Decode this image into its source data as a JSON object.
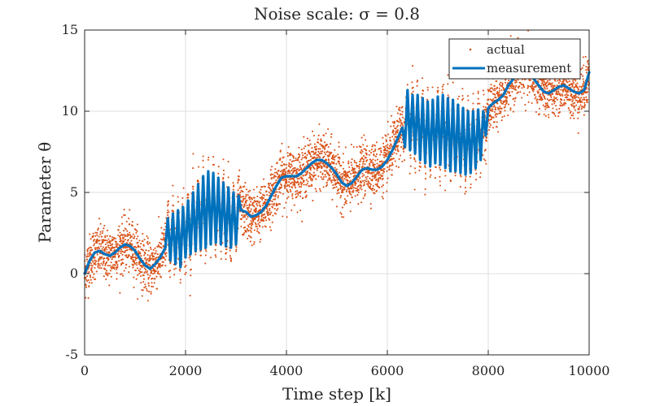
{
  "chart_data": {
    "type": "scatter",
    "title": "Noise scale: σ = 0.8",
    "xlabel": "Time step [k]",
    "ylabel": "Parameter θ",
    "xlim": [
      0,
      10000
    ],
    "ylim": [
      -5,
      15
    ],
    "xticks": [
      0,
      2000,
      4000,
      6000,
      8000,
      10000
    ],
    "yticks": [
      -5,
      0,
      5,
      10,
      15
    ],
    "grid": true,
    "legend_position": "top-right",
    "series": [
      {
        "name": "actual",
        "style": "dots",
        "color": "#D95319",
        "noise_sigma": 0.8,
        "note": "noisy samples scattered around the measurement curve"
      },
      {
        "name": "measurement",
        "style": "line",
        "color": "#0072BD",
        "x": [
          0,
          100,
          200,
          300,
          400,
          500,
          600,
          700,
          800,
          900,
          1000,
          1100,
          1200,
          1300,
          1400,
          1500,
          1600,
          1650,
          1700,
          1750,
          1800,
          1850,
          1900,
          1950,
          2000,
          2050,
          2100,
          2150,
          2200,
          2250,
          2300,
          2350,
          2400,
          2450,
          2500,
          2550,
          2600,
          2650,
          2700,
          2750,
          2800,
          2850,
          2900,
          2950,
          3000,
          3050,
          3100,
          3200,
          3300,
          3400,
          3500,
          3600,
          3700,
          3800,
          3900,
          4000,
          4100,
          4200,
          4300,
          4400,
          4500,
          4600,
          4700,
          4800,
          4900,
          5000,
          5100,
          5200,
          5300,
          5400,
          5500,
          5600,
          5700,
          5800,
          5900,
          6000,
          6100,
          6200,
          6300,
          6350,
          6400,
          6450,
          6500,
          6550,
          6600,
          6650,
          6700,
          6750,
          6800,
          6850,
          6900,
          6950,
          7000,
          7050,
          7100,
          7150,
          7200,
          7250,
          7300,
          7350,
          7400,
          7450,
          7500,
          7550,
          7600,
          7650,
          7700,
          7750,
          7800,
          7850,
          7900,
          7950,
          8000,
          8100,
          8200,
          8300,
          8400,
          8500,
          8600,
          8700,
          8800,
          8900,
          9000,
          9100,
          9200,
          9300,
          9400,
          9500,
          9600,
          9700,
          9800,
          9900,
          10000
        ],
        "y": [
          0.0,
          0.8,
          1.3,
          1.4,
          1.2,
          1.1,
          1.3,
          1.6,
          1.8,
          1.7,
          1.4,
          0.9,
          0.5,
          0.3,
          0.6,
          1.0,
          1.6,
          3.4,
          0.8,
          3.7,
          0.6,
          3.9,
          0.4,
          4.1,
          1.0,
          4.5,
          1.2,
          5.0,
          1.4,
          5.5,
          1.5,
          6.0,
          1.6,
          6.3,
          1.8,
          6.2,
          1.9,
          5.9,
          1.8,
          5.6,
          1.7,
          5.3,
          1.6,
          5.0,
          1.8,
          4.8,
          3.9,
          3.8,
          3.5,
          3.6,
          3.8,
          4.2,
          4.8,
          5.4,
          5.9,
          6.0,
          6.0,
          6.0,
          6.2,
          6.5,
          6.8,
          7.0,
          7.0,
          6.8,
          6.5,
          6.1,
          5.6,
          5.4,
          5.6,
          6.0,
          6.4,
          6.5,
          6.4,
          6.4,
          6.6,
          7.0,
          7.6,
          8.3,
          9.0,
          7.8,
          11.3,
          7.6,
          11.0,
          7.4,
          11.0,
          7.0,
          10.8,
          6.8,
          10.6,
          6.6,
          10.7,
          6.8,
          10.9,
          6.7,
          11.0,
          6.5,
          10.8,
          6.3,
          10.7,
          6.3,
          10.4,
          6.2,
          10.2,
          6.1,
          10.0,
          6.2,
          10.0,
          6.5,
          10.1,
          7.0,
          10.0,
          8.5,
          10.2,
          10.5,
          10.7,
          11.0,
          11.6,
          12.0,
          12.3,
          12.5,
          12.3,
          12.0,
          11.6,
          11.2,
          11.1,
          11.3,
          11.5,
          11.6,
          11.4,
          11.2,
          11.1,
          11.3,
          12.4
        ]
      }
    ]
  }
}
